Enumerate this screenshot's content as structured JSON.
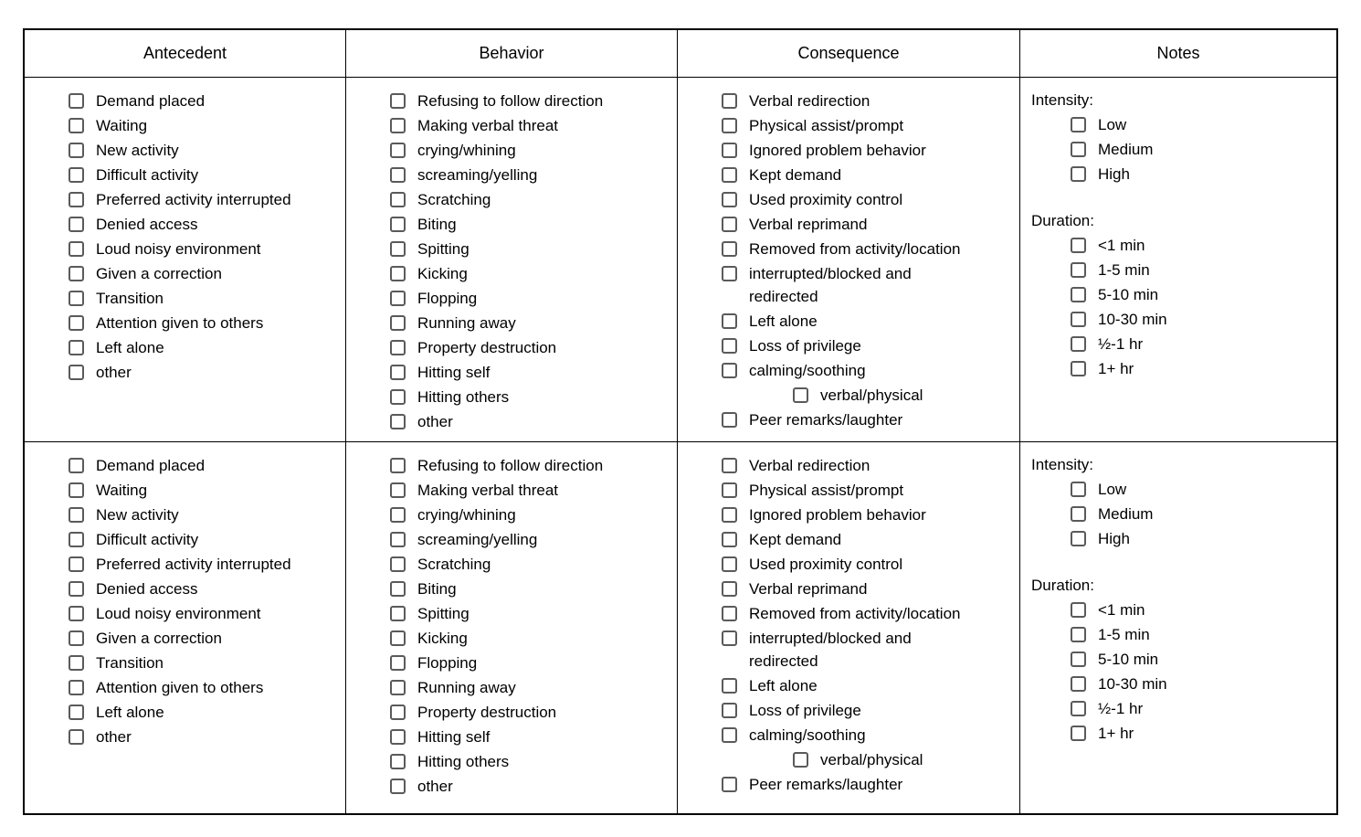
{
  "table": {
    "columns": [
      {
        "label": "Antecedent"
      },
      {
        "label": "Behavior"
      },
      {
        "label": "Consequence"
      },
      {
        "label": "Notes"
      }
    ],
    "row_count": 2
  },
  "antecedent_items": [
    "Demand placed",
    "Waiting",
    "New activity",
    "Difficult activity",
    "Preferred activity interrupted",
    "Denied access",
    "Loud noisy environment",
    "Given a correction",
    "Transition",
    "Attention given to others",
    "Left alone",
    "other"
  ],
  "behavior_items": [
    "Refusing to follow direction",
    "Making verbal threat",
    "crying/whining",
    "screaming/yelling",
    "Scratching",
    "Biting",
    "Spitting",
    "Kicking",
    "Flopping",
    "Running away",
    "Property destruction",
    "Hitting self",
    "Hitting others",
    "other"
  ],
  "consequence_items": [
    {
      "label": "Verbal redirection"
    },
    {
      "label": "Physical assist/prompt"
    },
    {
      "label": "Ignored problem behavior"
    },
    {
      "label": "Kept demand"
    },
    {
      "label": "Used proximity control"
    },
    {
      "label": "Verbal reprimand"
    },
    {
      "label": "Removed from activity/location"
    },
    {
      "label": "interrupted/blocked and\nredirected"
    },
    {
      "label": "Left alone"
    },
    {
      "label": "Loss of privilege"
    },
    {
      "label": "calming/soothing"
    },
    {
      "label": "verbal/physical",
      "sub": true
    },
    {
      "label": "Peer remarks/laughter"
    }
  ],
  "notes": {
    "intensity_label": "Intensity:",
    "intensity_options": [
      "Low",
      "Medium",
      "High"
    ],
    "duration_label": "Duration:",
    "duration_options": [
      "<1 min",
      "1-5 min",
      "5-10 min",
      "10-30 min",
      "½-1 hr",
      "1+ hr"
    ]
  },
  "colors": {
    "background": "#ffffff",
    "text": "#000000",
    "grid_border": "#000000",
    "checkbox_border": "#5a5a5a"
  }
}
